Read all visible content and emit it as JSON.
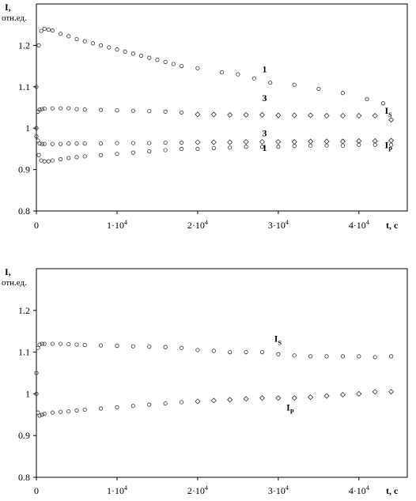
{
  "chart_data": [
    {
      "type": "scatter",
      "ylabel": "I,",
      "yunit": "отн.ед.",
      "xlabel": "t, c",
      "xlim": [
        0,
        46000
      ],
      "ylim": [
        0.8,
        1.3
      ],
      "yticks": [
        {
          "v": 0.8,
          "label": "0.8"
        },
        {
          "v": 0.9,
          "label": "0.9"
        },
        {
          "v": 1.0,
          "label": "1"
        },
        {
          "v": 1.1,
          "label": "1.1"
        },
        {
          "v": 1.2,
          "label": "1.2"
        }
      ],
      "xticks": [
        {
          "v": 0,
          "label": "0",
          "exp": ""
        },
        {
          "v": 10000,
          "label": "1·10",
          "exp": "4"
        },
        {
          "v": 20000,
          "label": "2·10",
          "exp": "4"
        },
        {
          "v": 30000,
          "label": "3·10",
          "exp": "4"
        },
        {
          "v": 40000,
          "label": "4·10",
          "exp": "4"
        }
      ],
      "grid": false,
      "annotations": [
        {
          "text": "1",
          "x": 28000,
          "y": 1.135,
          "sub": ""
        },
        {
          "text": "3",
          "x": 28000,
          "y": 1.065,
          "sub": ""
        },
        {
          "text": "I",
          "x": 43200,
          "y": 1.035,
          "sub": "S"
        },
        {
          "text": "3",
          "x": 28000,
          "y": 0.98,
          "sub": ""
        },
        {
          "text": "1",
          "x": 28000,
          "y": 0.945,
          "sub": ""
        },
        {
          "text": "I",
          "x": 43200,
          "y": 0.952,
          "sub": "P"
        }
      ],
      "series": [
        {
          "marker": "circle",
          "x": [
            0,
            300,
            600,
            1000,
            1500,
            2000,
            3000,
            4000,
            5000,
            6000,
            7000,
            8000,
            9000,
            10000,
            11000,
            12000,
            13000,
            14000,
            15000,
            16000,
            17000,
            18000,
            20000,
            23000,
            25000,
            27000,
            29000,
            32000,
            35000,
            38000,
            41000,
            43000
          ],
          "y": [
            1.1,
            1.2,
            1.235,
            1.24,
            1.238,
            1.236,
            1.228,
            1.222,
            1.215,
            1.21,
            1.205,
            1.2,
            1.195,
            1.19,
            1.185,
            1.18,
            1.175,
            1.17,
            1.165,
            1.16,
            1.155,
            1.15,
            1.145,
            1.135,
            1.13,
            1.12,
            1.11,
            1.105,
            1.095,
            1.085,
            1.07,
            1.06
          ]
        },
        {
          "marker": "circle",
          "x": [
            0,
            200,
            400,
            700,
            1000,
            2000,
            3000,
            4000,
            5000,
            6000,
            8000,
            10000,
            12000,
            14000,
            16000,
            18000
          ],
          "y": [
            1.0,
            1.04,
            1.045,
            1.046,
            1.047,
            1.048,
            1.048,
            1.048,
            1.046,
            1.045,
            1.044,
            1.043,
            1.042,
            1.041,
            1.04,
            1.038
          ]
        },
        {
          "marker": "diamond",
          "x": [
            20000,
            22000,
            24000,
            26000,
            28000,
            30000,
            32000,
            34000,
            36000,
            38000,
            40000,
            42000,
            44000
          ],
          "y": [
            1.033,
            1.033,
            1.032,
            1.032,
            1.032,
            1.031,
            1.031,
            1.031,
            1.03,
            1.03,
            1.03,
            1.03,
            1.02
          ]
        },
        {
          "marker": "circle",
          "x": [
            0,
            200,
            400,
            700,
            1000,
            2000,
            3000,
            4000,
            5000,
            6000,
            8000,
            10000,
            12000,
            14000,
            16000,
            18000
          ],
          "y": [
            1.0,
            0.97,
            0.963,
            0.962,
            0.962,
            0.962,
            0.962,
            0.963,
            0.963,
            0.963,
            0.963,
            0.964,
            0.964,
            0.964,
            0.965,
            0.965
          ]
        },
        {
          "marker": "diamond",
          "x": [
            20000,
            22000,
            24000,
            26000,
            28000,
            30000,
            32000,
            34000,
            36000,
            38000,
            40000,
            42000,
            44000
          ],
          "y": [
            0.966,
            0.966,
            0.966,
            0.967,
            0.967,
            0.967,
            0.967,
            0.968,
            0.968,
            0.968,
            0.969,
            0.969,
            0.97
          ]
        },
        {
          "marker": "circle",
          "x": [
            0,
            300,
            600,
            1000,
            1500,
            2000,
            3000,
            4000,
            5000,
            6000,
            8000,
            10000,
            12000,
            14000,
            16000,
            18000,
            20000,
            22000,
            24000,
            26000,
            28000,
            30000,
            32000,
            34000,
            36000,
            38000,
            40000,
            42000,
            44000
          ],
          "y": [
            0.98,
            0.935,
            0.922,
            0.92,
            0.92,
            0.922,
            0.925,
            0.928,
            0.93,
            0.932,
            0.935,
            0.938,
            0.941,
            0.944,
            0.947,
            0.95,
            0.95,
            0.952,
            0.953,
            0.955,
            0.955,
            0.955,
            0.957,
            0.958,
            0.958,
            0.958,
            0.96,
            0.96,
            0.96
          ]
        }
      ]
    },
    {
      "type": "scatter",
      "ylabel": "I,",
      "yunit": "отн.ед.",
      "xlabel": "t, c",
      "xlim": [
        0,
        46000
      ],
      "ylim": [
        0.8,
        1.3
      ],
      "yticks": [
        {
          "v": 0.8,
          "label": "0.8"
        },
        {
          "v": 0.9,
          "label": "0.9"
        },
        {
          "v": 1.0,
          "label": "1"
        },
        {
          "v": 1.1,
          "label": "1.1"
        },
        {
          "v": 1.2,
          "label": "1.2"
        }
      ],
      "xticks": [
        {
          "v": 0,
          "label": "0",
          "exp": ""
        },
        {
          "v": 10000,
          "label": "1·10",
          "exp": "4"
        },
        {
          "v": 20000,
          "label": "2·10",
          "exp": "4"
        },
        {
          "v": 30000,
          "label": "3·10",
          "exp": "4"
        },
        {
          "v": 40000,
          "label": "4·10",
          "exp": "4"
        }
      ],
      "grid": false,
      "annotations": [
        {
          "text": "I",
          "x": 29500,
          "y": 1.125,
          "sub": "S"
        },
        {
          "text": "I",
          "x": 31000,
          "y": 0.96,
          "sub": "P"
        }
      ],
      "series": [
        {
          "marker": "circle",
          "x": [
            0,
            200,
            400,
            700,
            1000,
            2000,
            3000,
            4000,
            5000,
            6000,
            8000,
            10000,
            12000,
            14000,
            16000,
            18000,
            20000,
            22000,
            24000,
            26000,
            28000,
            30000,
            32000,
            34000,
            36000,
            38000,
            40000,
            42000,
            44000
          ],
          "y": [
            1.05,
            1.11,
            1.118,
            1.12,
            1.12,
            1.12,
            1.12,
            1.119,
            1.118,
            1.117,
            1.116,
            1.115,
            1.114,
            1.113,
            1.112,
            1.11,
            1.105,
            1.103,
            1.1,
            1.1,
            1.1,
            1.095,
            1.092,
            1.09,
            1.09,
            1.09,
            1.09,
            1.088,
            1.09
          ]
        },
        {
          "marker": "circle",
          "x": [
            0,
            200,
            400,
            700,
            1000,
            2000,
            3000,
            4000,
            5000,
            6000,
            8000,
            10000,
            12000,
            14000,
            16000,
            18000
          ],
          "y": [
            1.0,
            0.955,
            0.948,
            0.95,
            0.952,
            0.955,
            0.957,
            0.958,
            0.96,
            0.962,
            0.965,
            0.968,
            0.971,
            0.974,
            0.977,
            0.98
          ]
        },
        {
          "marker": "diamond",
          "x": [
            20000,
            22000,
            24000,
            26000,
            28000,
            30000,
            32000,
            34000,
            36000,
            38000,
            40000,
            42000,
            44000
          ],
          "y": [
            0.982,
            0.984,
            0.986,
            0.988,
            0.99,
            0.99,
            0.99,
            0.992,
            0.995,
            0.998,
            1.0,
            1.005,
            1.005
          ]
        }
      ]
    }
  ]
}
